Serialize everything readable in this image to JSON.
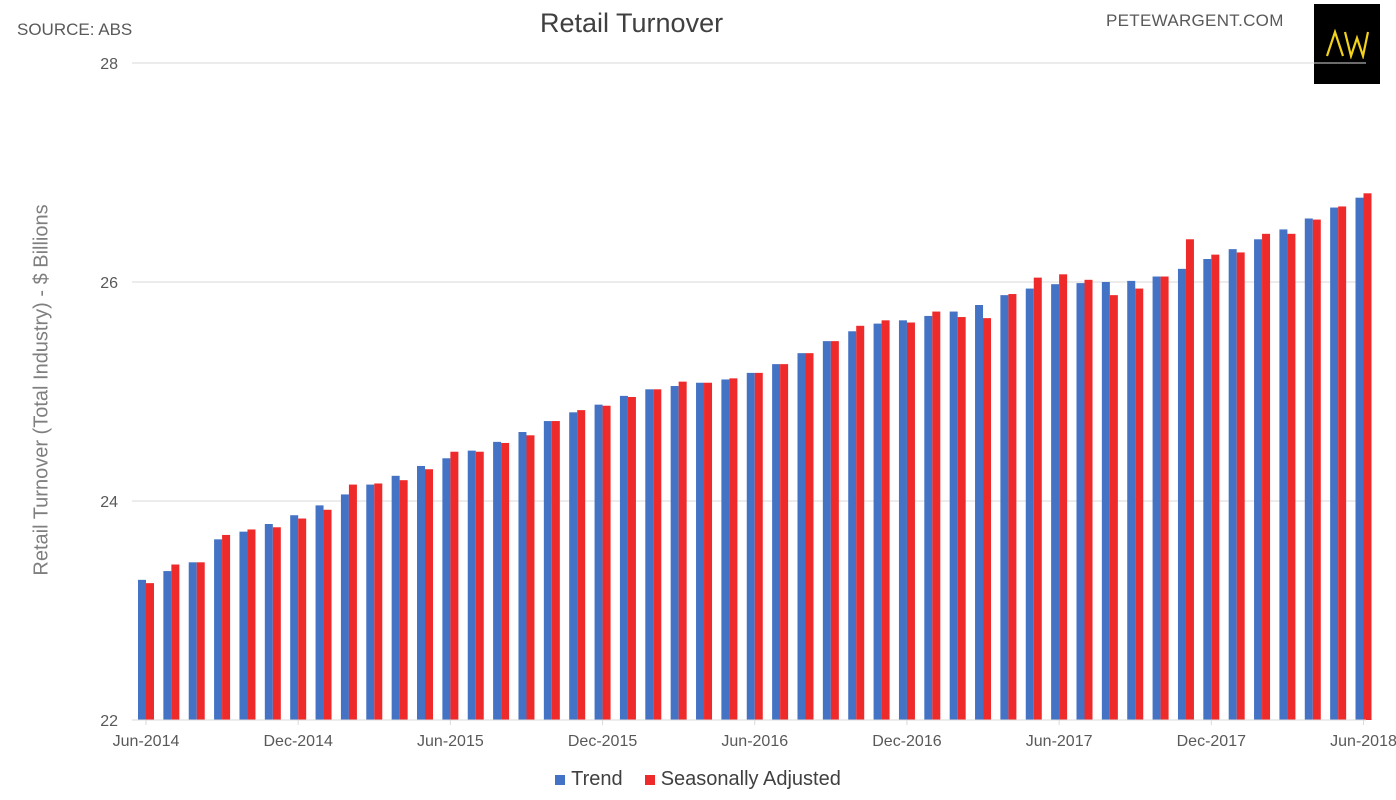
{
  "header": {
    "source": "SOURCE: ABS",
    "site": "PETEWARGENT.COM",
    "logo_text": "AW"
  },
  "colors": {
    "trend": "#4472c4",
    "seasonally_adjusted": "#ee2a2a",
    "grid": "#d9d9d9",
    "axis_text": "#595959",
    "logo_bg": "#000000",
    "logo_fg": "#f2d21c"
  },
  "chart_data": {
    "type": "bar",
    "title": "Retail Turnover",
    "ylabel": "Retail Turnover (Total Industry) - $ Billions",
    "xlabel": "",
    "ylim": [
      22,
      28
    ],
    "yticks": [
      "22",
      "24",
      "26",
      "28"
    ],
    "grid": true,
    "legend_position": "bottom",
    "categories": [
      "Jun-2014",
      "Jul-2014",
      "Aug-2014",
      "Sep-2014",
      "Oct-2014",
      "Nov-2014",
      "Dec-2014",
      "Jan-2015",
      "Feb-2015",
      "Mar-2015",
      "Apr-2015",
      "May-2015",
      "Jun-2015",
      "Jul-2015",
      "Aug-2015",
      "Sep-2015",
      "Oct-2015",
      "Nov-2015",
      "Dec-2015",
      "Jan-2016",
      "Feb-2016",
      "Mar-2016",
      "Apr-2016",
      "May-2016",
      "Jun-2016",
      "Jul-2016",
      "Aug-2016",
      "Sep-2016",
      "Oct-2016",
      "Nov-2016",
      "Dec-2016",
      "Jan-2017",
      "Feb-2017",
      "Mar-2017",
      "Apr-2017",
      "May-2017",
      "Jun-2017",
      "Jul-2017",
      "Aug-2017",
      "Sep-2017",
      "Oct-2017",
      "Nov-2017",
      "Dec-2017",
      "Jan-2018",
      "Feb-2018",
      "Mar-2018",
      "Apr-2018",
      "May-2018",
      "Jun-2018"
    ],
    "tick_labels": [
      "Jun-2014",
      "Dec-2014",
      "Jun-2015",
      "Dec-2015",
      "Jun-2016",
      "Dec-2016",
      "Jun-2017",
      "Dec-2017",
      "Jun-2018"
    ],
    "series": [
      {
        "name": "Trend",
        "values": [
          23.28,
          23.36,
          23.44,
          23.65,
          23.72,
          23.79,
          23.87,
          23.96,
          24.06,
          24.15,
          24.23,
          24.32,
          24.39,
          24.46,
          24.54,
          24.63,
          24.73,
          24.81,
          24.88,
          24.96,
          25.02,
          25.05,
          25.08,
          25.11,
          25.17,
          25.25,
          25.35,
          25.46,
          25.55,
          25.62,
          25.65,
          25.69,
          25.73,
          25.79,
          25.88,
          25.94,
          25.98,
          25.99,
          26.0,
          26.01,
          26.05,
          26.12,
          26.21,
          26.3,
          26.39,
          26.48,
          26.58,
          26.68,
          26.77
        ]
      },
      {
        "name": "Seasonally Adjusted",
        "values": [
          23.25,
          23.42,
          23.44,
          23.69,
          23.74,
          23.76,
          23.84,
          23.92,
          24.15,
          24.16,
          24.19,
          24.29,
          24.45,
          24.45,
          24.53,
          24.6,
          24.73,
          24.83,
          24.87,
          24.95,
          25.02,
          25.09,
          25.08,
          25.12,
          25.17,
          25.25,
          25.35,
          25.46,
          25.6,
          25.65,
          25.63,
          25.73,
          25.68,
          25.67,
          25.89,
          26.04,
          26.07,
          26.02,
          25.88,
          25.94,
          26.05,
          26.39,
          26.25,
          26.27,
          26.44,
          26.44,
          26.57,
          26.69,
          26.81
        ]
      }
    ]
  }
}
